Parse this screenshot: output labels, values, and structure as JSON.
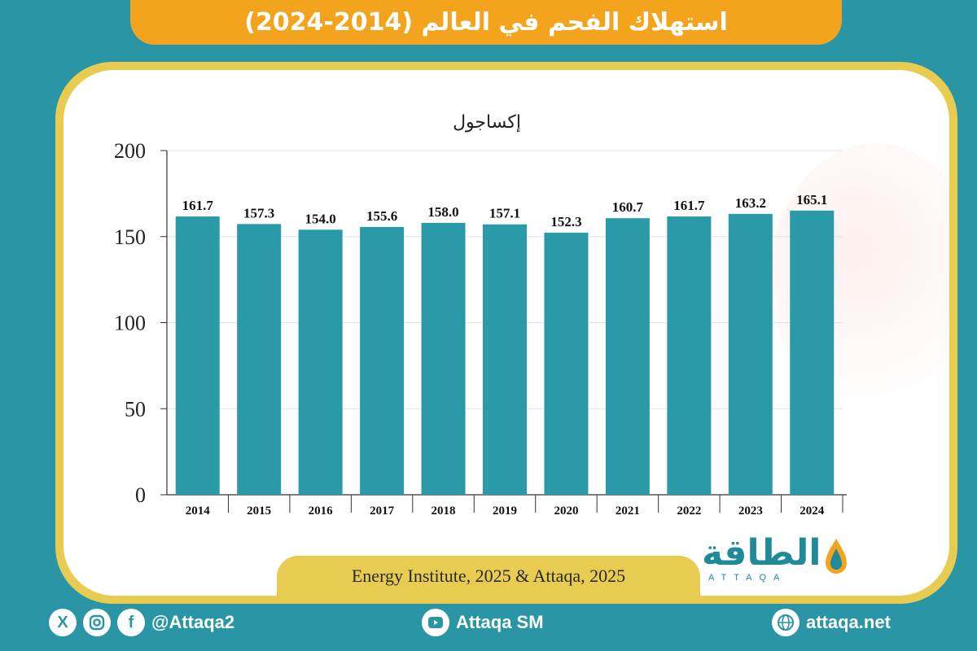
{
  "header": {
    "title": "استهلاك الفحم في العالم (2014-2024)"
  },
  "source": {
    "text": "Energy Institute, 2025 & Attaqa, 2025"
  },
  "logo": {
    "arabic": "الطاقة",
    "latin": "ATTAQA"
  },
  "footer": {
    "social_handle": "@Attaqa2",
    "youtube": "Attaqa SM",
    "website": "attaqa.net"
  },
  "colors": {
    "bar": "#2a9aa8",
    "background": "#2a96a5",
    "banner": "#f4a31c",
    "frame": "#e8cc52"
  },
  "icons": [
    "x-icon",
    "instagram-icon",
    "facebook-icon",
    "youtube-icon",
    "globe-icon"
  ],
  "chart_data": {
    "type": "bar",
    "ylabel": "إكساجول",
    "categories": [
      "2014",
      "2015",
      "2016",
      "2017",
      "2018",
      "2019",
      "2020",
      "2021",
      "2022",
      "2023",
      "2024"
    ],
    "values": [
      161.7,
      157.3,
      154.0,
      155.6,
      158.0,
      157.1,
      152.3,
      160.7,
      161.7,
      163.2,
      165.1
    ],
    "value_labels": [
      "161.7",
      "157.3",
      "154.0",
      "155.6",
      "158.0",
      "157.1",
      "152.3",
      "160.7",
      "161.7",
      "163.2",
      "165.1"
    ],
    "yticks": [
      "0",
      "50",
      "100",
      "150",
      "200"
    ],
    "ylim": [
      0,
      200
    ],
    "grid": true
  }
}
